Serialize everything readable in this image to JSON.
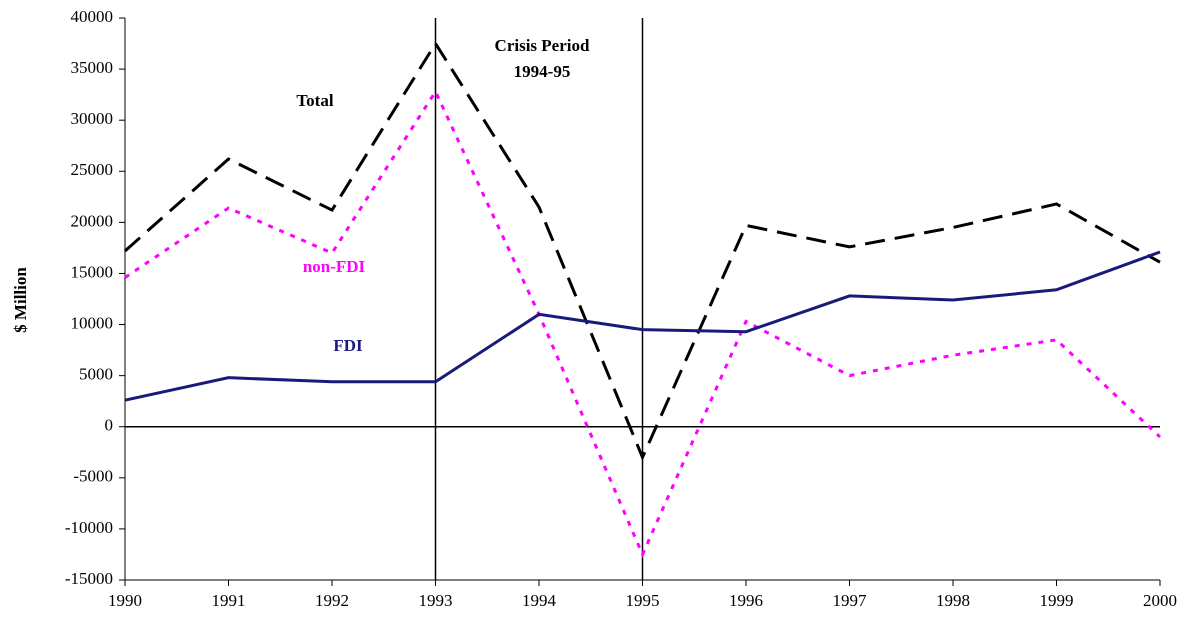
{
  "chart_data": {
    "type": "line",
    "y_label": "$ Million",
    "x": [
      1990,
      1991,
      1992,
      1993,
      1994,
      1995,
      1996,
      1997,
      1998,
      1999,
      2000
    ],
    "series": [
      {
        "name": "Total",
        "color": "#000000",
        "style": "dashed",
        "values": [
          17200,
          26200,
          21200,
          37500,
          21500,
          -3000,
          19700,
          17600,
          19500,
          21800,
          16100
        ]
      },
      {
        "name": "non-FDI",
        "color": "#ff00ff",
        "style": "dotted",
        "values": [
          14600,
          21400,
          17000,
          32800,
          11000,
          -12500,
          10300,
          5000,
          7000,
          8500,
          -1000
        ]
      },
      {
        "name": "FDI",
        "color": "#1a1a7a",
        "style": "solid",
        "values": [
          2600,
          4800,
          4400,
          4400,
          11000,
          9500,
          9300,
          12800,
          12400,
          13400,
          17100
        ]
      }
    ],
    "annotations": [
      "Crisis Period",
      "1994-95"
    ],
    "reference_lines": [
      1993,
      1995
    ],
    "xlim": [
      1990,
      2000
    ],
    "xticks": [
      1990,
      1991,
      1992,
      1993,
      1994,
      1995,
      1996,
      1997,
      1998,
      1999,
      2000
    ],
    "ylim": [
      -15000,
      40000
    ],
    "yticks": [
      -15000,
      -10000,
      -5000,
      0,
      5000,
      10000,
      15000,
      20000,
      25000,
      30000,
      35000,
      40000
    ],
    "grid": false
  }
}
